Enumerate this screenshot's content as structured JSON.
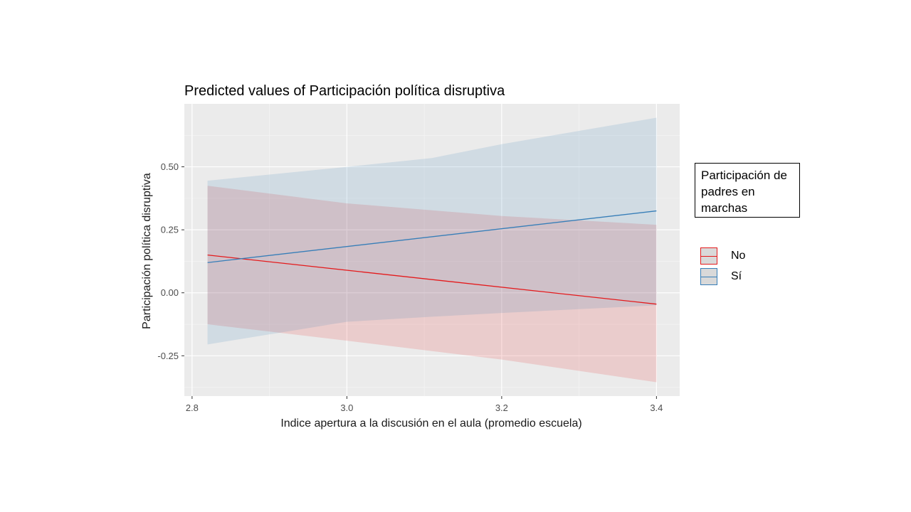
{
  "chart_data": {
    "type": "line",
    "title": "Predicted values of Participación política disruptiva",
    "xlabel": "Indice apertura a la discusión en el aula (promedio escuela)",
    "ylabel": "Participación política disruptiva",
    "xlim": [
      2.79,
      3.43
    ],
    "ylim": [
      -0.41,
      0.75
    ],
    "x_ticks": [
      2.8,
      3.0,
      3.2,
      3.4
    ],
    "x_tick_labels": [
      "2.8",
      "3.0",
      "3.2",
      "3.4"
    ],
    "y_ticks": [
      -0.25,
      0.0,
      0.25,
      0.5
    ],
    "y_tick_labels": [
      "-0.25",
      "0.00",
      "0.25",
      "0.50"
    ],
    "grid": true,
    "legend_position": "right",
    "legend_title": "Participación de padres en marchas",
    "series": [
      {
        "name": "No",
        "color": "#e41a1c",
        "x": [
          2.82,
          3.4
        ],
        "values": [
          0.15,
          -0.045
        ],
        "ci_x": [
          2.82,
          3.0,
          3.2,
          3.4
        ],
        "ci_lower": [
          -0.125,
          -0.19,
          -0.265,
          -0.355
        ],
        "ci_upper": [
          0.425,
          0.355,
          0.305,
          0.27
        ]
      },
      {
        "name": "Sí",
        "color": "#377eb8",
        "x": [
          2.82,
          3.4
        ],
        "values": [
          0.12,
          0.325
        ],
        "ci_x": [
          2.82,
          3.0,
          3.11,
          3.2,
          3.4
        ],
        "ci_lower": [
          -0.205,
          -0.115,
          -0.095,
          -0.08,
          -0.05
        ],
        "ci_upper": [
          0.445,
          0.5,
          0.535,
          0.59,
          0.695
        ]
      }
    ]
  }
}
